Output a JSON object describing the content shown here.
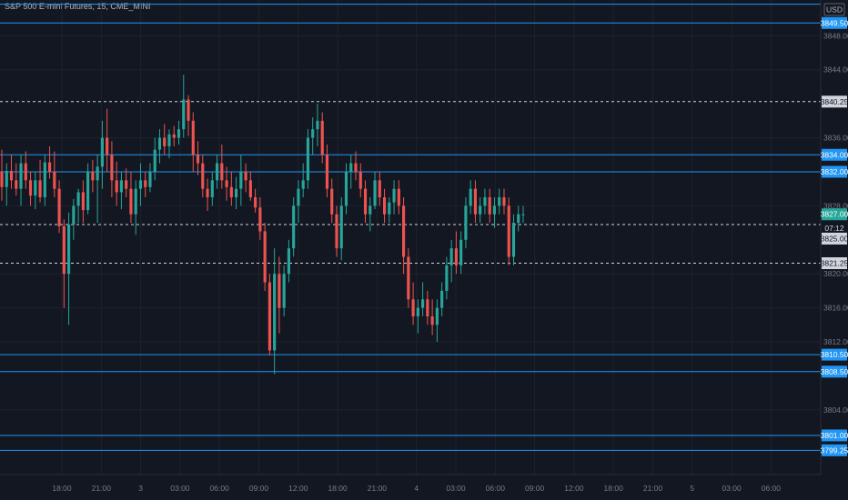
{
  "title": "S&P 500 E-mini Futures, 15, CME_MINI",
  "currency": "USD",
  "colors": {
    "background": "#131722",
    "grid": "#1e222d",
    "up": "#26a69a",
    "down": "#ef5350",
    "level_line": "#2196f3",
    "dashed_line": "#d1d4dc",
    "axis_text": "#787b86"
  },
  "chart_data": {
    "type": "candlestick",
    "ylim": [
      3796.4,
      3852.2
    ],
    "y_ticks": [
      "3848.00",
      "3844.00",
      "3836.00",
      "3828.00",
      "3820.00",
      "3816.00",
      "3812.00",
      "3804.00"
    ],
    "x_ticks": [
      "18:00",
      "21:00",
      "3",
      "03:00",
      "06:00",
      "09:00",
      "12:00",
      "18:00",
      "21:00",
      "4",
      "03:00",
      "06:00",
      "09:00",
      "12:00",
      "18:00",
      "21:00",
      "5",
      "03:00",
      "06:00"
    ],
    "horizontal_levels": [
      {
        "value": 3851.7,
        "label": ""
      },
      {
        "value": 3849.5,
        "label": "3849.50"
      },
      {
        "value": 3834.0,
        "label": "3834.00"
      },
      {
        "value": 3832.0,
        "label": "3832.00"
      },
      {
        "value": 3810.5,
        "label": "3810.50"
      },
      {
        "value": 3808.5,
        "label": "3808.50"
      },
      {
        "value": 3801.0,
        "label": "3801.00"
      },
      {
        "value": 3799.25,
        "label": "3799.25"
      }
    ],
    "dashed_levels": [
      {
        "value": 3840.25,
        "label": "3840.25"
      },
      {
        "value": 3825.8,
        "label": ""
      },
      {
        "value": 3821.25,
        "label": "3821.25"
      }
    ],
    "price_labels": [
      {
        "value": 3827.0,
        "label": "3827.00",
        "kind": "last"
      },
      {
        "value": 3825.8,
        "label": "07:12",
        "kind": "countdown"
      },
      {
        "value": 3825.0,
        "label": "3825.00",
        "kind": "gray"
      }
    ],
    "ohlc": [
      [
        3832.0,
        3834.6,
        3828.6,
        3830.2
      ],
      [
        3830.2,
        3833.0,
        3828.0,
        3832.1
      ],
      [
        3832.1,
        3834.0,
        3830.0,
        3831.0
      ],
      [
        3831.0,
        3833.0,
        3829.2,
        3830.0
      ],
      [
        3830.0,
        3834.0,
        3828.0,
        3833.0
      ],
      [
        3833.0,
        3834.4,
        3830.0,
        3831.0
      ],
      [
        3831.0,
        3832.0,
        3828.0,
        3829.2
      ],
      [
        3829.2,
        3832.0,
        3827.6,
        3831.0
      ],
      [
        3831.0,
        3833.4,
        3828.4,
        3829.0
      ],
      [
        3829.0,
        3834.0,
        3828.0,
        3833.1
      ],
      [
        3833.1,
        3835.0,
        3831.2,
        3832.0
      ],
      [
        3832.0,
        3834.4,
        3829.0,
        3830.0
      ],
      [
        3830.0,
        3831.0,
        3824.8,
        3825.6
      ],
      [
        3825.6,
        3826.4,
        3816.0,
        3820.0
      ],
      [
        3820.0,
        3827.2,
        3814.0,
        3825.8
      ],
      [
        3825.8,
        3828.8,
        3824.0,
        3828.0
      ],
      [
        3828.0,
        3830.0,
        3826.0,
        3829.6
      ],
      [
        3829.6,
        3831.0,
        3826.0,
        3827.5
      ],
      [
        3827.5,
        3833.0,
        3827.0,
        3832.0
      ],
      [
        3832.0,
        3833.4,
        3829.6,
        3831.0
      ],
      [
        3831.0,
        3834.0,
        3826.0,
        3832.6
      ],
      [
        3832.6,
        3838.0,
        3830.0,
        3836.0
      ],
      [
        3836.0,
        3839.4,
        3832.0,
        3834.0
      ],
      [
        3834.0,
        3835.6,
        3829.0,
        3831.0
      ],
      [
        3831.0,
        3833.2,
        3828.0,
        3829.6
      ],
      [
        3829.6,
        3832.0,
        3827.6,
        3831.0
      ],
      [
        3831.0,
        3832.4,
        3829.0,
        3830.0
      ],
      [
        3830.0,
        3832.0,
        3826.0,
        3827.0
      ],
      [
        3827.0,
        3831.0,
        3824.6,
        3830.0
      ],
      [
        3830.0,
        3833.0,
        3828.0,
        3831.0
      ],
      [
        3831.0,
        3832.0,
        3829.0,
        3830.2
      ],
      [
        3830.2,
        3833.0,
        3829.6,
        3832.0
      ],
      [
        3832.0,
        3836.0,
        3831.0,
        3834.6
      ],
      [
        3834.6,
        3837.0,
        3833.0,
        3836.0
      ],
      [
        3836.0,
        3837.6,
        3834.0,
        3835.0
      ],
      [
        3835.0,
        3837.0,
        3833.6,
        3836.4
      ],
      [
        3836.4,
        3837.4,
        3835.0,
        3836.0
      ],
      [
        3836.0,
        3838.0,
        3835.2,
        3837.0
      ],
      [
        3837.0,
        3843.4,
        3836.0,
        3840.5
      ],
      [
        3840.5,
        3841.0,
        3836.2,
        3838.0
      ],
      [
        3838.0,
        3839.0,
        3832.0,
        3834.0
      ],
      [
        3834.0,
        3835.6,
        3831.6,
        3833.0
      ],
      [
        3833.0,
        3834.0,
        3829.0,
        3830.0
      ],
      [
        3830.0,
        3831.2,
        3827.4,
        3829.0
      ],
      [
        3829.0,
        3832.0,
        3828.0,
        3831.0
      ],
      [
        3831.0,
        3834.0,
        3830.0,
        3833.0
      ],
      [
        3833.0,
        3835.2,
        3830.0,
        3831.0
      ],
      [
        3831.0,
        3832.6,
        3828.6,
        3830.2
      ],
      [
        3830.2,
        3832.0,
        3828.0,
        3829.0
      ],
      [
        3829.0,
        3831.4,
        3827.6,
        3830.0
      ],
      [
        3830.0,
        3834.0,
        3828.0,
        3832.0
      ],
      [
        3832.0,
        3833.0,
        3829.6,
        3831.0
      ],
      [
        3831.0,
        3832.0,
        3828.6,
        3829.0
      ],
      [
        3829.0,
        3830.0,
        3827.2,
        3827.8
      ],
      [
        3827.8,
        3829.0,
        3824.0,
        3825.0
      ],
      [
        3825.0,
        3826.0,
        3818.0,
        3819.0
      ],
      [
        3819.0,
        3820.0,
        3810.4,
        3811.0
      ],
      [
        3811.0,
        3823.0,
        3808.2,
        3820.0
      ],
      [
        3820.0,
        3822.0,
        3813.0,
        3816.0
      ],
      [
        3816.0,
        3821.0,
        3815.0,
        3820.0
      ],
      [
        3820.0,
        3824.0,
        3819.0,
        3823.0
      ],
      [
        3823.0,
        3829.0,
        3822.0,
        3828.0
      ],
      [
        3828.0,
        3831.0,
        3826.0,
        3830.0
      ],
      [
        3830.0,
        3833.0,
        3829.0,
        3831.0
      ],
      [
        3831.0,
        3837.0,
        3830.0,
        3836.0
      ],
      [
        3836.0,
        3838.4,
        3834.0,
        3837.0
      ],
      [
        3837.0,
        3840.0,
        3835.0,
        3838.0
      ],
      [
        3838.0,
        3839.0,
        3833.0,
        3834.0
      ],
      [
        3834.0,
        3835.2,
        3829.0,
        3830.0
      ],
      [
        3830.0,
        3831.2,
        3826.0,
        3827.0
      ],
      [
        3827.0,
        3828.0,
        3822.0,
        3823.0
      ],
      [
        3823.0,
        3829.0,
        3821.6,
        3828.0
      ],
      [
        3828.0,
        3833.0,
        3827.0,
        3832.0
      ],
      [
        3832.0,
        3834.0,
        3830.0,
        3833.0
      ],
      [
        3833.0,
        3834.4,
        3831.0,
        3832.0
      ],
      [
        3832.0,
        3833.0,
        3829.0,
        3830.0
      ],
      [
        3830.0,
        3831.0,
        3826.0,
        3827.0
      ],
      [
        3827.0,
        3829.0,
        3825.0,
        3828.0
      ],
      [
        3828.0,
        3832.0,
        3827.6,
        3831.0
      ],
      [
        3831.0,
        3832.0,
        3828.0,
        3829.0
      ],
      [
        3829.0,
        3830.0,
        3826.0,
        3827.0
      ],
      [
        3827.0,
        3829.0,
        3826.0,
        3828.4
      ],
      [
        3828.4,
        3831.0,
        3827.0,
        3830.0
      ],
      [
        3830.0,
        3831.0,
        3827.0,
        3828.0
      ],
      [
        3828.0,
        3829.0,
        3820.0,
        3822.0
      ],
      [
        3822.0,
        3823.0,
        3816.0,
        3817.0
      ],
      [
        3817.0,
        3819.0,
        3814.0,
        3815.0
      ],
      [
        3815.0,
        3817.0,
        3813.0,
        3816.0
      ],
      [
        3816.0,
        3819.0,
        3815.0,
        3817.0
      ],
      [
        3817.0,
        3818.0,
        3814.0,
        3815.0
      ],
      [
        3815.0,
        3817.0,
        3812.8,
        3814.0
      ],
      [
        3814.0,
        3817.0,
        3812.0,
        3816.0
      ],
      [
        3816.0,
        3819.0,
        3815.0,
        3818.0
      ],
      [
        3818.0,
        3822.0,
        3817.0,
        3821.0
      ],
      [
        3821.0,
        3824.0,
        3819.0,
        3823.0
      ],
      [
        3823.0,
        3825.0,
        3820.0,
        3821.0
      ],
      [
        3821.0,
        3825.0,
        3820.0,
        3824.0
      ],
      [
        3824.0,
        3829.0,
        3823.0,
        3828.0
      ],
      [
        3828.0,
        3831.0,
        3827.0,
        3830.0
      ],
      [
        3830.0,
        3831.0,
        3826.0,
        3827.0
      ],
      [
        3827.0,
        3829.0,
        3826.0,
        3828.0
      ],
      [
        3828.0,
        3830.0,
        3827.0,
        3829.0
      ],
      [
        3829.0,
        3830.0,
        3826.0,
        3827.0
      ],
      [
        3827.0,
        3829.0,
        3825.4,
        3828.0
      ],
      [
        3828.0,
        3830.0,
        3827.0,
        3829.0
      ],
      [
        3829.0,
        3830.0,
        3827.0,
        3828.0
      ],
      [
        3828.0,
        3829.0,
        3821.0,
        3822.0
      ],
      [
        3822.0,
        3827.0,
        3821.0,
        3826.0
      ],
      [
        3826.0,
        3828.0,
        3825.0,
        3827.0
      ],
      [
        3827.0,
        3828.0,
        3826.0,
        3827.0
      ]
    ]
  }
}
